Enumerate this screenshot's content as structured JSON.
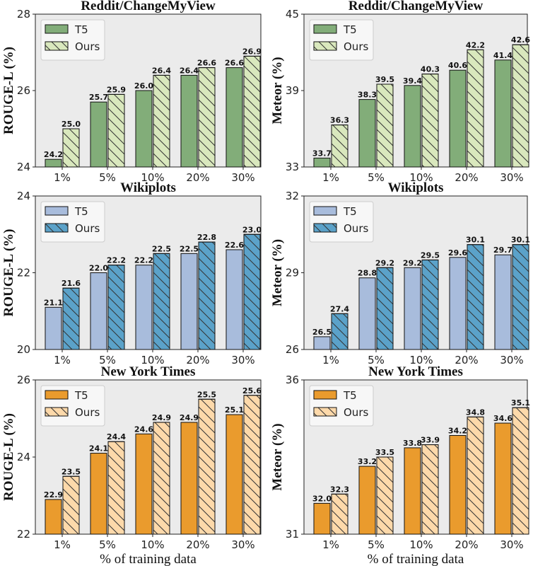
{
  "chart_data": [
    {
      "type": "bar",
      "title": "Reddit/ChangeMyView",
      "xlabel": "",
      "ylabel": "ROUGE-L (%)",
      "categories": [
        "1%",
        "5%",
        "10%",
        "20%",
        "30%"
      ],
      "ylim": [
        24,
        28
      ],
      "yticks": [
        24,
        26,
        28
      ],
      "legend": "top-left",
      "grid": false,
      "colors": {
        "T5": "#82ad79",
        "Ours": "#d9e8bd"
      },
      "series": [
        {
          "name": "T5",
          "values": [
            24.2,
            25.7,
            26.0,
            26.4,
            26.6
          ]
        },
        {
          "name": "Ours",
          "values": [
            25.0,
            25.9,
            26.4,
            26.6,
            26.9
          ]
        }
      ]
    },
    {
      "type": "bar",
      "title": "Reddit/ChangeMyView",
      "xlabel": "",
      "ylabel": "Meteor (%)",
      "categories": [
        "1%",
        "5%",
        "10%",
        "20%",
        "30%"
      ],
      "ylim": [
        33,
        45
      ],
      "yticks": [
        33,
        39,
        45
      ],
      "legend": "top-left",
      "grid": false,
      "colors": {
        "T5": "#82ad79",
        "Ours": "#d9e8bd"
      },
      "series": [
        {
          "name": "T5",
          "values": [
            33.7,
            38.3,
            39.4,
            40.6,
            41.4
          ]
        },
        {
          "name": "Ours",
          "values": [
            36.3,
            39.5,
            40.3,
            42.2,
            42.6
          ]
        }
      ]
    },
    {
      "type": "bar",
      "title": "Wikiplots",
      "xlabel": "",
      "ylabel": "ROUGE-L (%)",
      "categories": [
        "1%",
        "5%",
        "10%",
        "20%",
        "30%"
      ],
      "ylim": [
        20,
        24
      ],
      "yticks": [
        20,
        22,
        24
      ],
      "legend": "top-left",
      "grid": false,
      "colors": {
        "T5": "#a8bcdc",
        "Ours": "#5ba2c9"
      },
      "series": [
        {
          "name": "T5",
          "values": [
            21.1,
            22.0,
            22.2,
            22.5,
            22.6
          ]
        },
        {
          "name": "Ours",
          "values": [
            21.6,
            22.2,
            22.5,
            22.8,
            23.0
          ]
        }
      ]
    },
    {
      "type": "bar",
      "title": "Wikiplots",
      "xlabel": "",
      "ylabel": "Meteor (%)",
      "categories": [
        "1%",
        "5%",
        "10%",
        "20%",
        "30%"
      ],
      "ylim": [
        26,
        32
      ],
      "yticks": [
        26,
        29,
        32
      ],
      "legend": "top-left",
      "grid": false,
      "colors": {
        "T5": "#a8bcdc",
        "Ours": "#5ba2c9"
      },
      "series": [
        {
          "name": "T5",
          "values": [
            26.5,
            28.8,
            29.2,
            29.6,
            29.7
          ]
        },
        {
          "name": "Ours",
          "values": [
            27.4,
            29.2,
            29.5,
            30.1,
            30.1
          ]
        }
      ]
    },
    {
      "type": "bar",
      "title": "New York Times",
      "xlabel": "% of training data",
      "ylabel": "ROUGE-L (%)",
      "categories": [
        "1%",
        "5%",
        "10%",
        "20%",
        "30%"
      ],
      "ylim": [
        22,
        26
      ],
      "yticks": [
        22,
        24,
        26
      ],
      "legend": "top-left",
      "grid": false,
      "colors": {
        "T5": "#ea9b2d",
        "Ours": "#fdd9aa"
      },
      "series": [
        {
          "name": "T5",
          "values": [
            22.9,
            24.1,
            24.6,
            24.9,
            25.1
          ]
        },
        {
          "name": "Ours",
          "values": [
            23.5,
            24.4,
            24.9,
            25.5,
            25.6
          ]
        }
      ]
    },
    {
      "type": "bar",
      "title": "New York Times",
      "xlabel": "% of training data",
      "ylabel": "Meteor (%)",
      "categories": [
        "1%",
        "5%",
        "10%",
        "20%",
        "30%"
      ],
      "ylim": [
        31,
        36
      ],
      "yticks": [
        31,
        36
      ],
      "legend": "top-left",
      "grid": false,
      "colors": {
        "T5": "#ea9b2d",
        "Ours": "#fdd9aa"
      },
      "series": [
        {
          "name": "T5",
          "values": [
            32.0,
            33.2,
            33.8,
            34.2,
            34.6
          ]
        },
        {
          "name": "Ours",
          "values": [
            32.3,
            33.5,
            33.9,
            34.8,
            35.1
          ]
        }
      ]
    }
  ],
  "background": "#ebebeb"
}
